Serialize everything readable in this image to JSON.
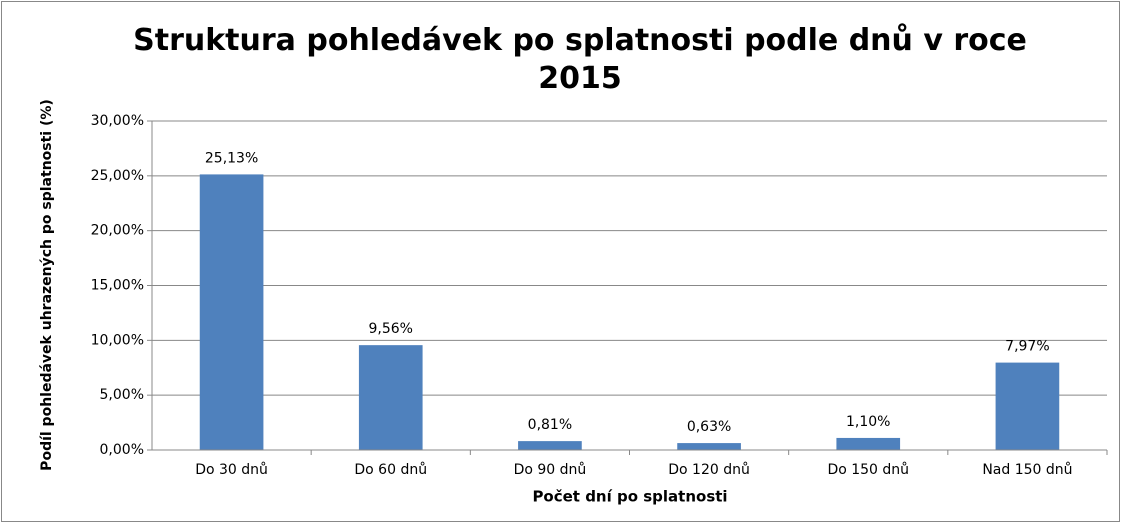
{
  "chart_data": {
    "type": "bar",
    "title": "Struktura pohledávek po splatnosti podle dnů v roce 2015",
    "y_label": "Podíl pohledávek uhrazených po splatnosti (%)",
    "x_label": "Počet dní po splatnosti",
    "categories": [
      "Do 30 dnů",
      "Do 60 dnů",
      "Do 90 dnů",
      "Do 120 dnů",
      "Do 150 dnů",
      "Nad 150 dnů"
    ],
    "values": [
      25.13,
      9.56,
      0.81,
      0.63,
      1.1,
      7.97
    ],
    "value_labels": [
      "25,13%",
      "9,56%",
      "0,81%",
      "0,63%",
      "1,10%",
      "7,97%"
    ],
    "color": "#4f81bd",
    "ylim": [
      0,
      30
    ],
    "yticks": [
      {
        "value": 0,
        "label": "0,00%"
      },
      {
        "value": 5,
        "label": "5,00%"
      },
      {
        "value": 10,
        "label": "10,00%"
      },
      {
        "value": 15,
        "label": "15,00%"
      },
      {
        "value": 20,
        "label": "20,00%"
      },
      {
        "value": 25,
        "label": "25,00%"
      },
      {
        "value": 30,
        "label": "30,00%"
      }
    ],
    "grid": true
  }
}
